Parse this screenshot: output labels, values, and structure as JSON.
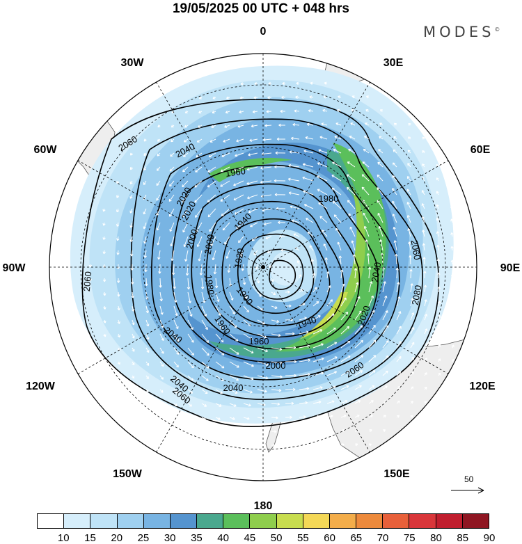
{
  "title": "19/05/2025  00 UTC  + 048 hrs",
  "brand": "MODES",
  "brand_mark": "©",
  "longitude_labels": {
    "top": "0",
    "bottom": "180",
    "left": "90W",
    "right": "90E",
    "w30": "30W",
    "w60": "60W",
    "w120": "120W",
    "w150": "150W",
    "e30": "30E",
    "e60": "60E",
    "e120": "120E",
    "e150": "150E"
  },
  "contour_labels": [
    "2060",
    "2040",
    "2020",
    "2000",
    "1980",
    "1960",
    "1940",
    "1920",
    "1900",
    "1960",
    "1940",
    "1960",
    "1980",
    "2000",
    "2020",
    "2040",
    "2060",
    "2080",
    "2060",
    "2040",
    "2000",
    "2020",
    "2040",
    "2060",
    "2040",
    "2060"
  ],
  "vector_scale": "50",
  "colorbar": {
    "ticks": [
      "10",
      "15",
      "20",
      "25",
      "30",
      "35",
      "40",
      "45",
      "50",
      "55",
      "60",
      "65",
      "70",
      "75",
      "80",
      "85",
      "90"
    ],
    "colors": [
      "#ffffff",
      "#d6eefb",
      "#bfe3f7",
      "#9fd0f0",
      "#78b4e3",
      "#5594cf",
      "#4aa88e",
      "#5bbf5b",
      "#8fce4d",
      "#c8dd4f",
      "#f4d857",
      "#f3ad4a",
      "#ed8a3c",
      "#e8603a",
      "#d9363a",
      "#c01e2e",
      "#8f1622"
    ]
  },
  "colors": {
    "land": "#eeeeee",
    "coast": "#555555",
    "grid": "#000000",
    "contour": "#000000",
    "arrow": "#ffffff"
  }
}
